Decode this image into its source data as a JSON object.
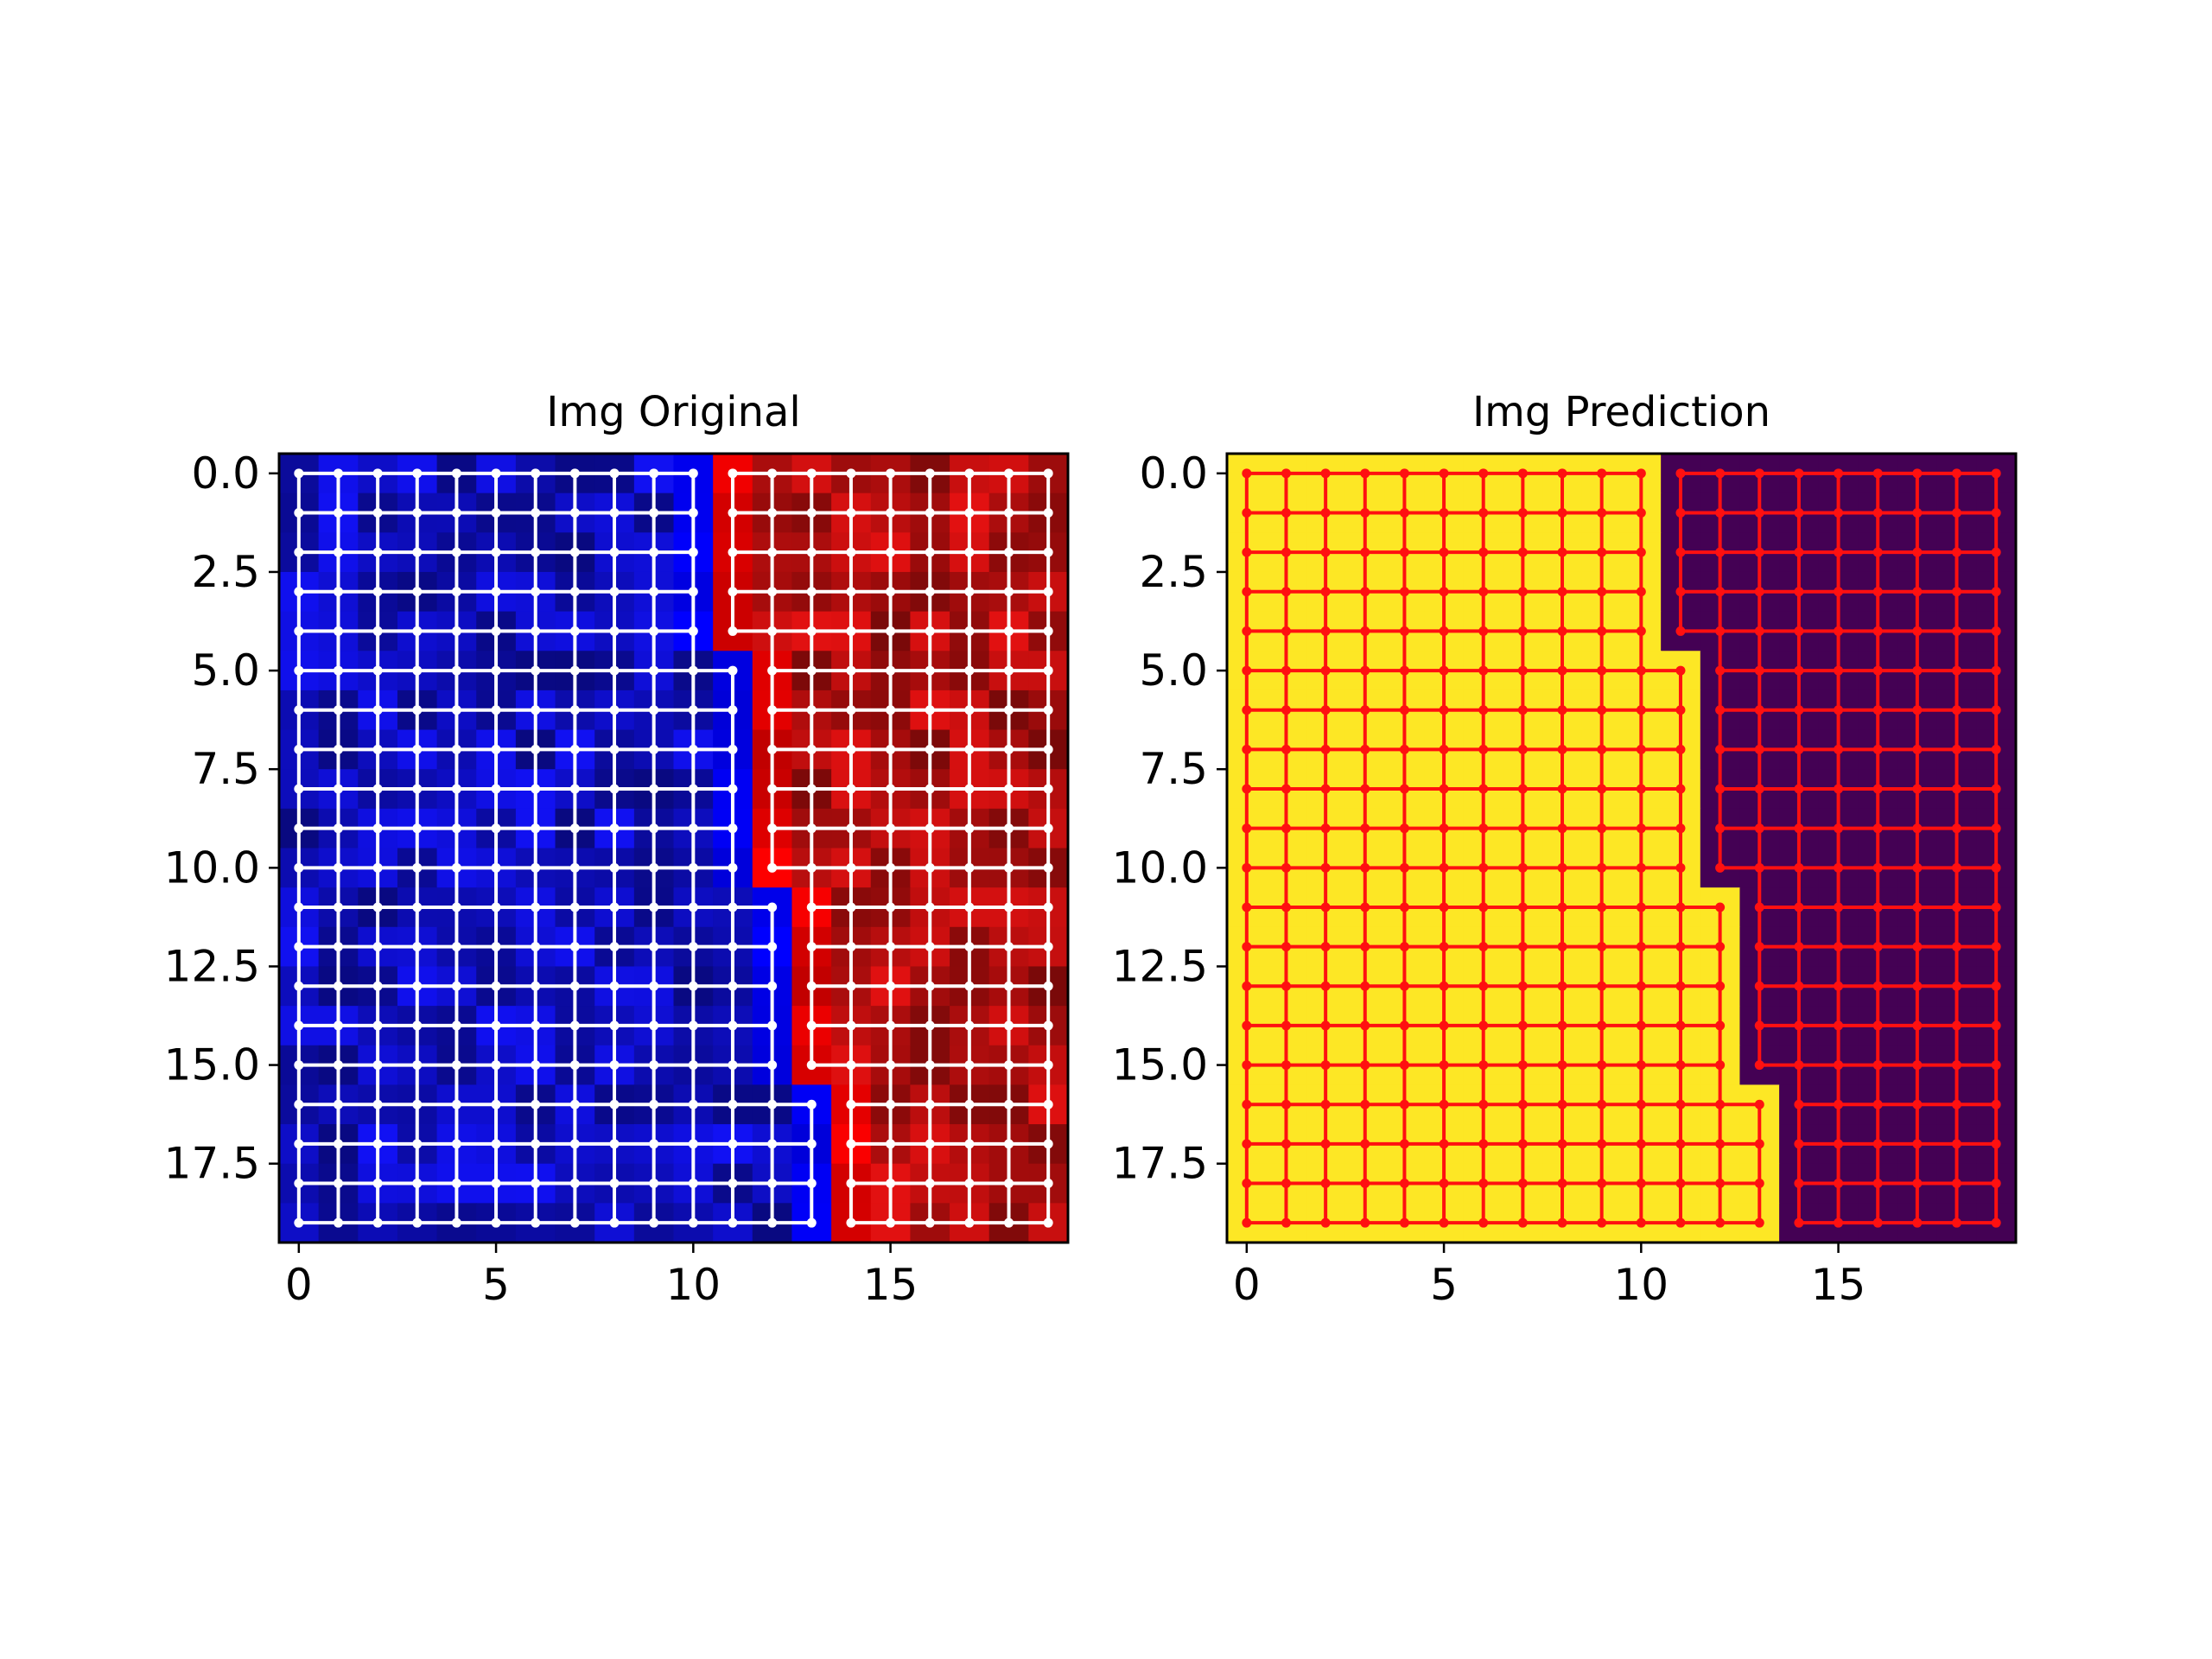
{
  "figure": {
    "background": "#ffffff"
  },
  "chart_data": [
    {
      "type": "heatmap",
      "title": "Img Original",
      "grid_size": [
        20,
        20
      ],
      "x_ticks": [
        0,
        5,
        10,
        15
      ],
      "x_tick_labels": [
        "0",
        "5",
        "10",
        "15"
      ],
      "y_ticks": [
        0,
        2.5,
        5,
        7.5,
        10,
        12.5,
        15,
        17.5
      ],
      "y_tick_labels": [
        "0.0",
        "2.5",
        "5.0",
        "7.5",
        "10.0",
        "12.5",
        "15.0",
        "17.5"
      ],
      "xlim": [
        -0.5,
        19.5
      ],
      "ylim": [
        19.5,
        -0.5
      ],
      "region_a_color": "#1010e8",
      "region_b_color": "#d81010",
      "boundary_color": "#0000ff",
      "boundary_color_b": "#ff0000",
      "lattice_color": "#ffffff",
      "region_split": [
        {
          "rows": [
            0,
            4
          ],
          "last_col_region_a": 10
        },
        {
          "rows": [
            5,
            10
          ],
          "last_col_region_a": 11
        },
        {
          "rows": [
            11,
            15
          ],
          "last_col_region_a": 12
        },
        {
          "rows": [
            16,
            19
          ],
          "last_col_region_a": 13
        }
      ],
      "noise_seed": 7
    },
    {
      "type": "heatmap",
      "title": "Img Prediction",
      "grid_size": [
        20,
        20
      ],
      "x_ticks": [
        0,
        5,
        10,
        15
      ],
      "x_tick_labels": [
        "0",
        "5",
        "10",
        "15"
      ],
      "y_ticks": [
        0,
        2.5,
        5,
        7.5,
        10,
        12.5,
        15,
        17.5
      ],
      "y_tick_labels": [
        "0.0",
        "2.5",
        "5.0",
        "7.5",
        "10.0",
        "12.5",
        "15.0",
        "17.5"
      ],
      "xlim": [
        -0.5,
        19.5
      ],
      "ylim": [
        19.5,
        -0.5
      ],
      "region_a_color": "#fde725",
      "region_b_color": "#440154",
      "lattice_color": "#ff1010",
      "region_split": [
        {
          "rows": [
            0,
            4
          ],
          "last_col_region_a": 10
        },
        {
          "rows": [
            5,
            10
          ],
          "last_col_region_a": 11
        },
        {
          "rows": [
            11,
            15
          ],
          "last_col_region_a": 12
        },
        {
          "rows": [
            16,
            19
          ],
          "last_col_region_a": 13
        }
      ]
    }
  ]
}
